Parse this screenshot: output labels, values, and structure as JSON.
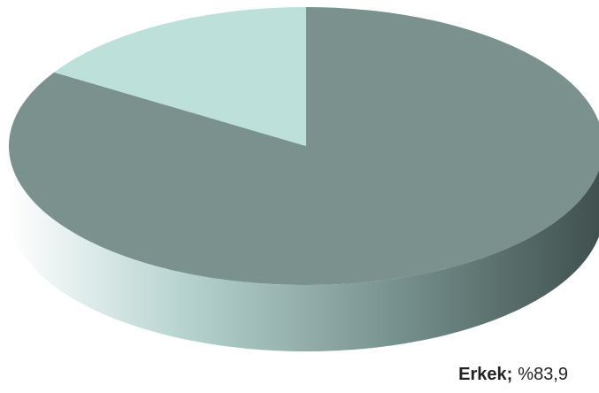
{
  "chart_data": {
    "type": "pie",
    "categories": [
      "Erkek;",
      null
    ],
    "values": [
      83.9,
      16.1
    ],
    "value_labels": [
      "%83,9",
      null
    ],
    "colors": [
      "#7a918d",
      "#bde0da"
    ]
  }
}
